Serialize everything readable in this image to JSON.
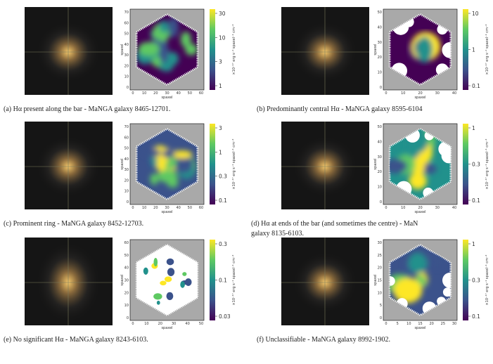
{
  "figure": {
    "panels": [
      {
        "caption": [
          "(a) Hα present along the bar - MaNGA galaxy 8465-12701."
        ],
        "map": {
          "x_label": "spaxel",
          "y_label": "spaxel",
          "xticks": [
            0,
            10,
            20,
            30,
            40,
            50,
            60
          ],
          "yticks": [
            0,
            10,
            20,
            30,
            40,
            50,
            60,
            70
          ]
        },
        "colorbar": {
          "ticks": [
            30,
            10,
            3,
            1
          ],
          "label": "×10⁻¹⁷ erg s⁻¹ spaxel⁻¹ cm⁻²"
        }
      },
      {
        "caption": [
          "(b) Predominantly central Hα - MaNGA galaxy 8595-6104"
        ],
        "map": {
          "x_label": "spaxel",
          "y_label": "spaxel",
          "xticks": [
            0,
            10,
            20,
            30,
            40
          ],
          "yticks": [
            0,
            10,
            20,
            30,
            40,
            50
          ]
        },
        "colorbar": {
          "ticks": [
            10,
            1,
            0.1
          ],
          "label": "×10⁻¹⁷ erg s⁻¹ spaxel⁻¹ cm⁻²"
        }
      },
      {
        "caption": [
          "(c) Prominent ring - MaNGA galaxy 8452-12703."
        ],
        "map": {
          "x_label": "spaxel",
          "y_label": "spaxel",
          "xticks": [
            0,
            10,
            20,
            30,
            40,
            50,
            60
          ],
          "yticks": [
            0,
            10,
            20,
            30,
            40,
            50,
            60,
            70
          ]
        },
        "colorbar": {
          "ticks": [
            3,
            1,
            0.3,
            0.1
          ],
          "label": "×10⁻¹⁷ erg s⁻¹ spaxel⁻¹ cm⁻²"
        }
      },
      {
        "caption": [
          "(d) Hα at ends of the bar (and sometimes the centre) - MaN",
          "galaxy 8135-6103."
        ],
        "map": {
          "x_label": "spaxel",
          "y_label": "spaxel",
          "xticks": [
            0,
            10,
            20,
            30,
            40
          ],
          "yticks": [
            0,
            10,
            20,
            30,
            40,
            50
          ]
        },
        "colorbar": {
          "ticks": [
            1,
            0.3,
            0.1
          ],
          "label": "×10⁻¹⁷ erg s⁻¹ spaxel⁻¹ cm⁻²"
        }
      },
      {
        "caption": [
          "(e) No significant Hα - MaNGA galaxy 8243-6103."
        ],
        "map": {
          "x_label": "spaxel",
          "y_label": "spaxel",
          "xticks": [
            0,
            10,
            20,
            30,
            40,
            50
          ],
          "yticks": [
            0,
            10,
            20,
            30,
            40,
            50,
            60
          ]
        },
        "colorbar": {
          "ticks": [
            0.3,
            0.1,
            0.03
          ],
          "label": "×10⁻¹⁷ erg s⁻¹ spaxel⁻¹ cm⁻²"
        }
      },
      {
        "caption": [
          "(f) Unclassifiable - MaNGA galaxy 8992-1902."
        ],
        "map": {
          "x_label": "spaxel",
          "y_label": "spaxel",
          "xticks": [
            0,
            5,
            10,
            15,
            20,
            25,
            30
          ],
          "yticks": [
            0,
            5,
            10,
            15,
            20,
            25,
            30
          ]
        },
        "colorbar": {
          "ticks": [
            1,
            0.3,
            0.1
          ],
          "label": "×10⁻¹⁷ erg s⁻¹ spaxel⁻¹ cm⁻²"
        }
      }
    ]
  }
}
